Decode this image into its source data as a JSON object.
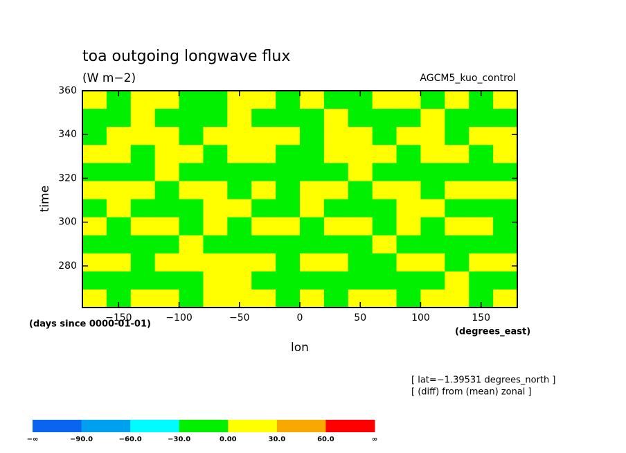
{
  "chart_data": {
    "type": "heatmap",
    "title": "toa outgoing longwave flux",
    "subtitle": "(W m−2)",
    "dataset": "AGCM5_kuo_control",
    "xlabel": "lon",
    "ylabel": "time",
    "xunits": "(degrees_east)",
    "yunits": "(days since 0000-01-01)",
    "notes": [
      "[ lat=−1.39531 degrees_north ]",
      "[ (diff) from (mean) zonal ]"
    ],
    "xlim": [
      -180,
      180
    ],
    "ylim": [
      261,
      360
    ],
    "xticks": [
      {
        "value": -150,
        "label": "−150"
      },
      {
        "value": -100,
        "label": "−100"
      },
      {
        "value": -50,
        "label": "−50"
      },
      0,
      50,
      100,
      150
    ],
    "yticks": [
      280,
      300,
      320,
      340,
      360
    ],
    "colorbar": {
      "ticks": [
        "−∞",
        {
          "value": -90,
          "label": "−90.0"
        },
        {
          "value": -60,
          "label": "−60.0"
        },
        {
          "value": -30,
          "label": "−30.0"
        },
        {
          "value": 0,
          "label": "0.00"
        },
        {
          "value": 30,
          "label": "30.0"
        },
        {
          "value": 60,
          "label": "60.0"
        },
        "∞"
      ],
      "colors": [
        "#0a64f0",
        "#00a0f0",
        "#00fcff",
        "#00f000",
        "#ffff00",
        "#f8a800",
        "#ff0000"
      ]
    },
    "z": [
      [
        10,
        -10,
        10,
        10,
        -10,
        -10,
        10,
        10,
        -10,
        10,
        -10,
        -10,
        10,
        10,
        -10,
        10,
        -10,
        10
      ],
      [
        -10,
        -10,
        10,
        -10,
        -10,
        -10,
        10,
        -10,
        -10,
        -10,
        10,
        -10,
        -10,
        -10,
        10,
        -10,
        -10,
        -10
      ],
      [
        -10,
        10,
        10,
        10,
        -10,
        10,
        10,
        10,
        10,
        -10,
        10,
        10,
        -10,
        10,
        10,
        -10,
        10,
        10
      ],
      [
        10,
        10,
        -10,
        10,
        10,
        -10,
        10,
        10,
        -10,
        -10,
        10,
        10,
        10,
        -10,
        10,
        10,
        -10,
        10
      ],
      [
        -10,
        -10,
        -10,
        10,
        -10,
        -10,
        -10,
        -10,
        -10,
        -10,
        -10,
        10,
        -10,
        -10,
        -10,
        -10,
        -10,
        -10
      ],
      [
        10,
        10,
        10,
        -10,
        10,
        10,
        -10,
        10,
        -10,
        10,
        10,
        -10,
        10,
        10,
        -10,
        10,
        10,
        10
      ],
      [
        -10,
        10,
        -10,
        -10,
        -10,
        10,
        10,
        -10,
        -10,
        10,
        -10,
        -10,
        -10,
        10,
        10,
        -10,
        -10,
        -10
      ],
      [
        10,
        -10,
        10,
        10,
        -10,
        10,
        -10,
        10,
        10,
        -10,
        10,
        10,
        -10,
        10,
        -10,
        10,
        10,
        -10
      ],
      [
        -10,
        -10,
        -10,
        -10,
        10,
        -10,
        -10,
        -10,
        -10,
        -10,
        -10,
        -10,
        10,
        -10,
        -10,
        -10,
        -10,
        -10
      ],
      [
        10,
        10,
        -10,
        10,
        10,
        10,
        10,
        10,
        -10,
        10,
        10,
        -10,
        -10,
        10,
        10,
        -10,
        10,
        10
      ],
      [
        -10,
        -10,
        -10,
        -10,
        -10,
        10,
        10,
        -10,
        -10,
        -10,
        -10,
        -10,
        -10,
        -10,
        -10,
        10,
        -10,
        -10
      ],
      [
        10,
        -10,
        10,
        10,
        -10,
        10,
        10,
        10,
        -10,
        10,
        -10,
        10,
        10,
        -10,
        10,
        10,
        -10,
        10
      ]
    ]
  }
}
